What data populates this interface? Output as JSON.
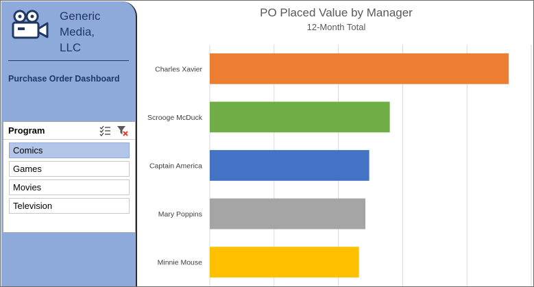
{
  "sidebar": {
    "company": "Generic Media, LLC",
    "company_lines": [
      "Generic",
      "Media,",
      "LLC"
    ],
    "dashboard_title": "Purchase Order Dashboard",
    "logo_icon": "video-camera-icon"
  },
  "slicer": {
    "title": "Program",
    "multiselect_icon": "multi-select-icon",
    "clear_icon": "clear-filter-icon",
    "items": [
      {
        "label": "Comics",
        "selected": true
      },
      {
        "label": "Games",
        "selected": false
      },
      {
        "label": "Movies",
        "selected": false
      },
      {
        "label": "Television",
        "selected": false
      }
    ]
  },
  "chart_data": {
    "type": "bar",
    "orientation": "horizontal",
    "title": "PO Placed Value by Manager",
    "subtitle": "12-Month Total",
    "categories": [
      "Charles Xavier",
      "Scrooge McDuck",
      "Captain America",
      "Mary Poppins",
      "Minnie Mouse"
    ],
    "values": [
      4.65,
      2.8,
      2.48,
      2.42,
      2.32
    ],
    "colors": [
      "#ed7d31",
      "#70ad47",
      "#4472c4",
      "#a5a5a5",
      "#ffc000"
    ],
    "xlim": [
      0,
      5
    ],
    "grid": true,
    "xlabel": "",
    "ylabel": ""
  },
  "colors": {
    "sidebar_bg": "#8eaadb",
    "brand_text": "#1f3864",
    "selected_item": "#b4c6e7"
  }
}
